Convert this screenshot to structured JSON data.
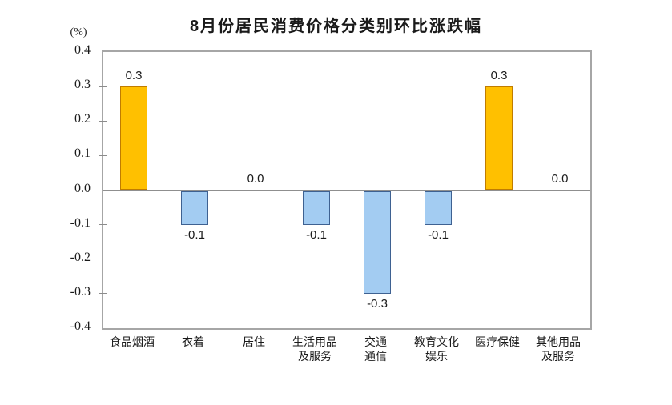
{
  "chart": {
    "title": "8月份居民消费价格分类别环比涨跌幅",
    "unit_label": "(%)"
  },
  "chart_data": {
    "type": "bar",
    "title": "8月份居民消费价格分类别环比涨跌幅",
    "unit": "(%)",
    "categories": [
      "食品烟酒",
      "衣着",
      "居住",
      "生活用品及服务",
      "交通通信",
      "教育文化娱乐",
      "医疗保健",
      "其他用品及服务"
    ],
    "category_label_lines": [
      [
        "食品烟酒"
      ],
      [
        "衣着"
      ],
      [
        "居住"
      ],
      [
        "生活用品",
        "及服务"
      ],
      [
        "交通",
        "通信"
      ],
      [
        "教育文化",
        "娱乐"
      ],
      [
        "医疗保健"
      ],
      [
        "其他用品",
        "及服务"
      ]
    ],
    "values": [
      0.3,
      -0.1,
      0.0,
      -0.1,
      -0.3,
      -0.1,
      0.3,
      0.0
    ],
    "data_labels": [
      "0.3",
      "-0.1",
      "0.0",
      "-0.1",
      "-0.3",
      "-0.1",
      "0.3",
      "0.0"
    ],
    "ylim": [
      -0.4,
      0.4
    ],
    "y_tick_values": [
      0.4,
      0.3,
      0.2,
      0.1,
      0.0,
      -0.1,
      -0.2,
      -0.3,
      -0.4
    ],
    "y_tick_labels": [
      "0.4",
      "0.3",
      "0.2",
      "0.1",
      "0.0",
      "-0.1",
      "-0.2",
      "-0.3",
      "-0.4"
    ],
    "grid": false,
    "legend": "none",
    "colors": {
      "positive_fill": "#ffc000",
      "positive_border": "#c07c00",
      "negative_fill": "#a3ccf2",
      "negative_border": "#3e6191",
      "axis_frame": "#a6a6a6",
      "zero_line": "#8f8f8f",
      "text": "#1a1a1a"
    }
  }
}
